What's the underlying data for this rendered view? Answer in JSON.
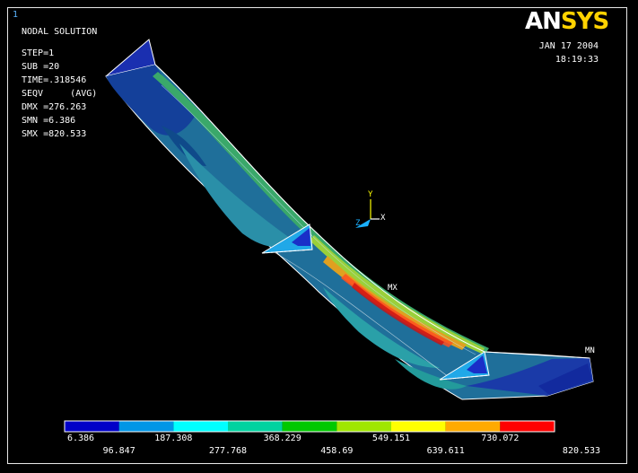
{
  "window_number": "1",
  "logo": {
    "an": "AN",
    "sys": "SYS"
  },
  "header": {
    "title": "NODAL SOLUTION",
    "step": "STEP=1",
    "sub": "SUB =20",
    "time": "TIME=.318546",
    "seqv": "SEQV     (AVG)",
    "dmx": "DMX =276.263",
    "smn": "SMN =6.386",
    "smx": "SMX =820.533"
  },
  "date": "JAN 17 2004",
  "time": "18:19:33",
  "markers": {
    "mx": "MX",
    "mn": "MN"
  },
  "triad": {
    "x": "X",
    "y": "Y",
    "z": "Z"
  },
  "legend": {
    "colors": [
      "#0000c8",
      "#0096e6",
      "#00ffff",
      "#00d2a0",
      "#00c800",
      "#a0e600",
      "#ffff00",
      "#ffaa00",
      "#ff0000"
    ],
    "top_labels": [
      "6.386",
      "187.308",
      "368.229",
      "549.151",
      "730.072"
    ],
    "bottom_labels": [
      "96.847",
      "277.768",
      "458.69",
      "639.611",
      "820.533"
    ]
  }
}
